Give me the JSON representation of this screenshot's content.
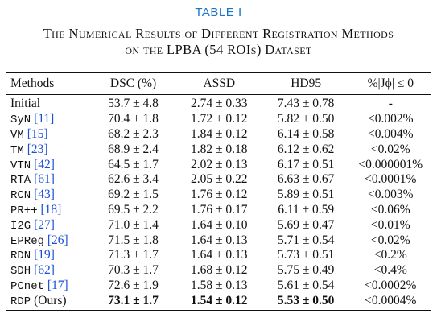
{
  "table_label": "TABLE I",
  "caption": {
    "line1": "The Numerical Results of Different Registration Methods",
    "line2": "on the LPBA (54 ROIs) Dataset"
  },
  "headers": {
    "methods": "Methods",
    "dsc": "DSC (%)",
    "assd": "ASSD",
    "hd95": "HD95",
    "jacobian": "%|Jϕ| ≤ 0"
  },
  "rows": [
    {
      "method": "Initial",
      "cite": "",
      "dsc": "53.7 ± 4.8",
      "assd": "2.74 ± 0.33",
      "hd95": "7.43 ± 0.78",
      "jac": "-"
    },
    {
      "method": "SyN",
      "cite": "[11]",
      "dsc": "70.4 ± 1.8",
      "assd": "1.72 ± 0.12",
      "hd95": "5.82 ± 0.50",
      "jac": "<0.002%"
    },
    {
      "method": "VM",
      "cite": "[15]",
      "dsc": "68.2 ± 2.3",
      "assd": "1.84 ± 0.12",
      "hd95": "6.14 ± 0.58",
      "jac": "<0.004%"
    },
    {
      "method": "TM",
      "cite": "[23]",
      "dsc": "68.9 ± 2.4",
      "assd": "1.82 ± 0.18",
      "hd95": "6.12 ± 0.62",
      "jac": "<0.02%"
    },
    {
      "method": "VTN",
      "cite": "[42]",
      "dsc": "64.5 ± 1.7",
      "assd": "2.02 ± 0.13",
      "hd95": "6.17 ± 0.51",
      "jac": "<0.000001%"
    },
    {
      "method": "RTA",
      "cite": "[61]",
      "dsc": "62.6 ± 3.4",
      "assd": "2.05 ± 0.22",
      "hd95": "6.63 ± 0.67",
      "jac": "<0.0001%"
    },
    {
      "method": "RCN",
      "cite": "[43]",
      "dsc": "69.2 ± 1.5",
      "assd": "1.76 ± 0.12",
      "hd95": "5.89 ± 0.51",
      "jac": "<0.003%"
    },
    {
      "method": "PR++",
      "cite": "[18]",
      "dsc": "69.5 ± 2.2",
      "assd": "1.76 ± 0.17",
      "hd95": "6.11 ± 0.59",
      "jac": "<0.06%"
    },
    {
      "method": "I2G",
      "cite": "[27]",
      "dsc": "71.0 ± 1.4",
      "assd": "1.64 ± 0.10",
      "hd95": "5.69 ± 0.47",
      "jac": "<0.01%"
    },
    {
      "method": "EPReg",
      "cite": "[26]",
      "dsc": "71.5 ± 1.8",
      "assd": "1.64 ± 0.13",
      "hd95": "5.71 ± 0.54",
      "jac": "<0.02%"
    },
    {
      "method": "RDN",
      "cite": "[19]",
      "dsc": "71.3 ± 1.7",
      "assd": "1.64 ± 0.13",
      "hd95": "5.73 ± 0.51",
      "jac": "<0.2%"
    },
    {
      "method": "SDH",
      "cite": "[62]",
      "dsc": "70.3 ± 1.7",
      "assd": "1.68 ± 0.12",
      "hd95": "5.75 ± 0.49",
      "jac": "<0.4%"
    },
    {
      "method": "PCnet",
      "cite": "[17]",
      "dsc": "72.6 ± 1.9",
      "assd": "1.58 ± 0.13",
      "hd95": "5.61 ± 0.54",
      "jac": "<0.0002%"
    },
    {
      "method": "RDP",
      "cite": "(Ours)",
      "dsc": "73.1 ± 1.7",
      "assd": "1.54 ± 0.12",
      "hd95": "5.53 ± 0.50",
      "jac": "<0.0004%",
      "best": true
    }
  ],
  "colors": {
    "label_blue": "#1a73c7",
    "cite_blue": "#1a4fd6",
    "text": "#111111"
  }
}
